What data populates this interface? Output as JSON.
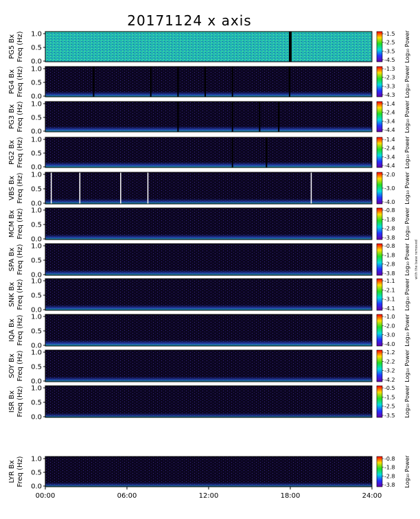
{
  "title": "20171124 x axis",
  "side_note": "with the base removed",
  "colors": {
    "background": "#ffffff",
    "panel_bg": "#0b0520",
    "cb_top": "#ff0000",
    "cb_bottom": "#5500aa"
  },
  "chart_data": {
    "type": "heatmap",
    "x_tick_labels": [
      "00:00",
      "06:00",
      "12:00",
      "18:00",
      "24:00"
    ],
    "x_range_hours": [
      0,
      24
    ],
    "y_tick_labels": [
      "0.0",
      "0.5",
      "1.0"
    ],
    "y_range_hz": [
      0,
      1.0
    ],
    "colorbar_label": "Log₁₀ Power",
    "panels": [
      {
        "station": "PG5",
        "ylabel_top": "PG5 Bx",
        "ylabel_bottom": "Freq (Hz)",
        "cb_ticks": [
          "-1.5",
          "-2.5",
          "-3.5",
          "-4.5"
        ],
        "intensity": 0.55,
        "gaps": [
          [
            17.9,
            18.1
          ]
        ],
        "white_lines": []
      },
      {
        "station": "PG4",
        "ylabel_top": "PG4 Bx",
        "ylabel_bottom": "Freq (Hz)",
        "cb_ticks": [
          "-1.3",
          "-2.3",
          "-3.3",
          "-4.3"
        ],
        "intensity": 0.25,
        "gaps": [
          [
            3.5,
            3.6
          ],
          [
            7.7,
            7.8
          ],
          [
            9.7,
            9.8
          ],
          [
            11.7,
            11.8
          ],
          [
            13.7,
            13.8
          ],
          [
            17.9,
            18.0
          ]
        ],
        "white_lines": []
      },
      {
        "station": "PG3",
        "ylabel_top": "PG3 Bx",
        "ylabel_bottom": "Freq (Hz)",
        "cb_ticks": [
          "-1.4",
          "-2.4",
          "-3.4",
          "-4.4"
        ],
        "intensity": 0.28,
        "gaps": [
          [
            9.7,
            9.8
          ],
          [
            13.7,
            13.8
          ],
          [
            15.7,
            15.8
          ],
          [
            17.1,
            17.2
          ]
        ],
        "white_lines": []
      },
      {
        "station": "PG2",
        "ylabel_top": "PG2 Bx",
        "ylabel_bottom": "Freq (Hz)",
        "cb_ticks": [
          "-1.4",
          "-2.4",
          "-3.4",
          "-4.4"
        ],
        "intensity": 0.28,
        "gaps": [
          [
            13.7,
            13.8
          ],
          [
            16.2,
            16.3
          ]
        ],
        "white_lines": []
      },
      {
        "station": "VBS",
        "ylabel_top": "VBS Bx",
        "ylabel_bottom": "Freq (Hz)",
        "cb_ticks": [
          "-2.0",
          "-3.0",
          "-4.0"
        ],
        "intensity": 0.2,
        "gaps": [],
        "white_lines": [
          0.4,
          2.5,
          5.5,
          7.5,
          19.5
        ]
      },
      {
        "station": "MCM",
        "ylabel_top": "MCM Bx",
        "ylabel_bottom": "Freq (Hz)",
        "cb_ticks": [
          "-0.8",
          "-1.8",
          "-2.8",
          "-3.8"
        ],
        "intensity": 0.22,
        "gaps": [],
        "white_lines": []
      },
      {
        "station": "SPA",
        "ylabel_top": "SPA Bx",
        "ylabel_bottom": "Freq (Hz)",
        "cb_ticks": [
          "-0.8",
          "-1.8",
          "-2.8",
          "-3.8"
        ],
        "intensity": 0.22,
        "gaps": [],
        "white_lines": []
      },
      {
        "station": "SNK",
        "ylabel_top": "SNK Bx",
        "ylabel_bottom": "Freq (Hz)",
        "cb_ticks": [
          "-1.1",
          "-2.1",
          "-3.1",
          "-4.1"
        ],
        "intensity": 0.24,
        "gaps": [],
        "white_lines": []
      },
      {
        "station": "IQA",
        "ylabel_top": "IQA Bx",
        "ylabel_bottom": "Freq (Hz)",
        "cb_ticks": [
          "-1.0",
          "-2.0",
          "-3.0",
          "-4.0"
        ],
        "intensity": 0.3,
        "gaps": [],
        "white_lines": []
      },
      {
        "station": "SOY",
        "ylabel_top": "SOY Bx",
        "ylabel_bottom": "Freq (Hz)",
        "cb_ticks": [
          "-1.2",
          "-2.2",
          "-3.2",
          "-4.2"
        ],
        "intensity": 0.2,
        "gaps": [],
        "white_lines": []
      },
      {
        "station": "ISR",
        "ylabel_top": "ISR Bx",
        "ylabel_bottom": "Freq (Hz)",
        "cb_ticks": [
          "-0.5",
          "-1.5",
          "-2.5",
          "-3.5"
        ],
        "intensity": 0.1,
        "gaps": [],
        "white_lines": []
      },
      {
        "station": "LYR",
        "ylabel_top": "LYR Bx",
        "ylabel_bottom": "Freq (Hz)",
        "cb_ticks": [
          "-0.8",
          "-1.8",
          "-2.8",
          "-3.8"
        ],
        "intensity": 0.12,
        "gaps": [],
        "white_lines": []
      }
    ]
  }
}
